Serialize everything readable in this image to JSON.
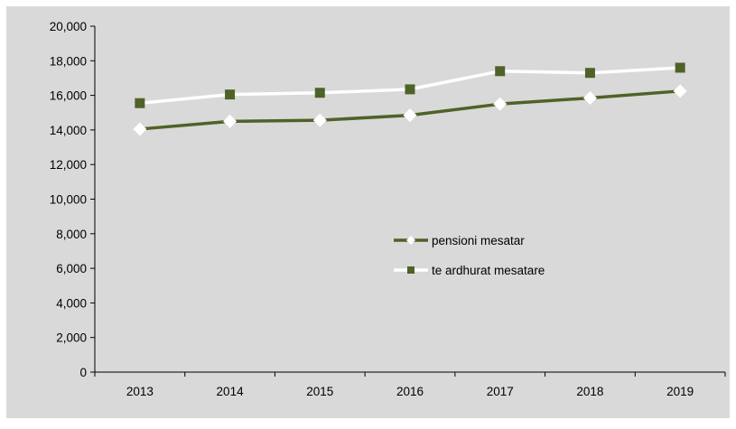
{
  "chart_data": {
    "type": "line",
    "categories": [
      "2013",
      "2014",
      "2015",
      "2016",
      "2017",
      "2018",
      "2019"
    ],
    "series": [
      {
        "name": "pensioni mesatar",
        "values": [
          14050,
          14500,
          14560,
          14850,
          15500,
          15850,
          16250
        ],
        "color": "#4f6228",
        "marker": "diamond",
        "marker_color": "#ffffff"
      },
      {
        "name": "te ardhurat mesatare",
        "values": [
          15550,
          16050,
          16150,
          16350,
          17400,
          17300,
          17600
        ],
        "color": "#ffffff",
        "marker": "square",
        "marker_color": "#4f6228"
      }
    ],
    "y_ticks": [
      "0",
      "2,000",
      "4,000",
      "6,000",
      "8,000",
      "10,000",
      "12,000",
      "14,000",
      "16,000",
      "18,000",
      "20,000"
    ],
    "ylim": [
      0,
      20000
    ],
    "grid": false,
    "legend_position": "center-right",
    "colors": {
      "background": "#d9d9d9",
      "axis": "#000000"
    }
  }
}
